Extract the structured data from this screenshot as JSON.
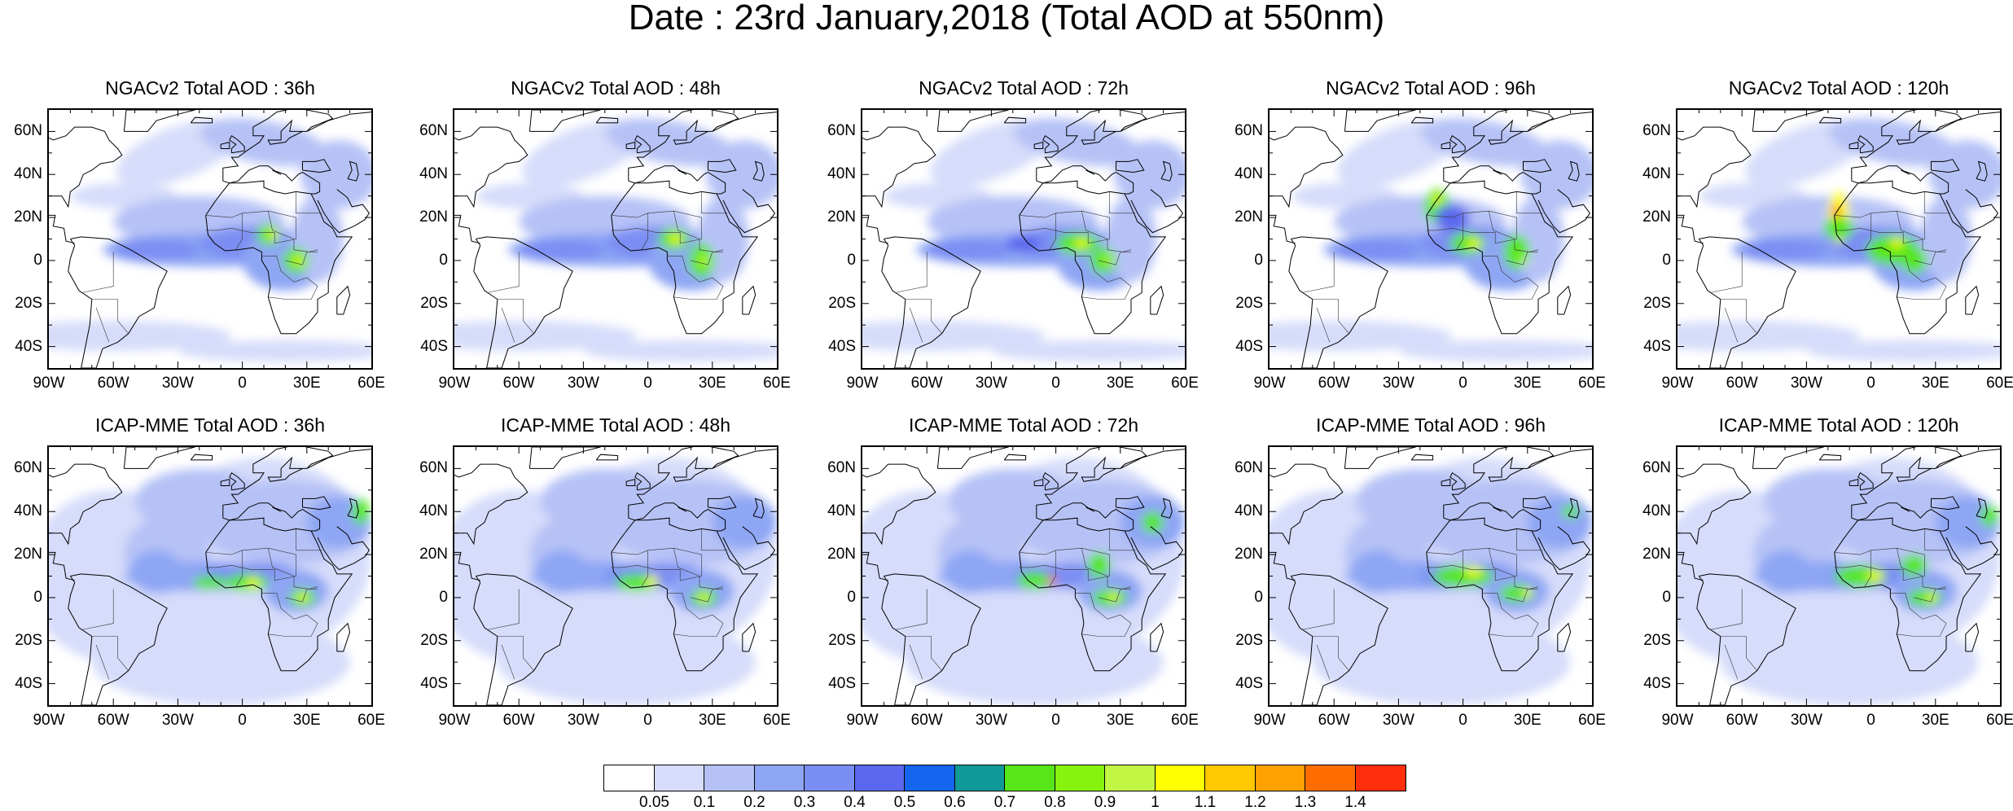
{
  "title": "Date : 23rd January,2018 (Total AOD at 550nm)",
  "rows": [
    {
      "panels": [
        {
          "title": "NGACv2 Total AOD : 36h"
        },
        {
          "title": "NGACv2 Total AOD : 48h"
        },
        {
          "title": "NGACv2 Total AOD : 72h"
        },
        {
          "title": "NGACv2 Total AOD : 96h"
        },
        {
          "title": "NGACv2 Total AOD : 120h"
        }
      ]
    },
    {
      "panels": [
        {
          "title": "ICAP-MME Total AOD : 36h"
        },
        {
          "title": "ICAP-MME Total AOD : 48h"
        },
        {
          "title": "ICAP-MME Total AOD : 72h"
        },
        {
          "title": "ICAP-MME Total AOD : 96h"
        },
        {
          "title": "ICAP-MME Total AOD : 120h"
        }
      ]
    }
  ],
  "lat_labels": [
    "60N",
    "40N",
    "20N",
    "0",
    "20S",
    "40S"
  ],
  "lon_labels": [
    "90W",
    "60W",
    "30W",
    "0",
    "30E",
    "60E"
  ],
  "colorbar": {
    "labels": [
      "0.05",
      "0.1",
      "0.2",
      "0.3",
      "0.4",
      "0.5",
      "0.6",
      "0.7",
      "0.8",
      "0.9",
      "1",
      "1.1",
      "1.2",
      "1.3",
      "1.4"
    ],
    "colors": [
      "#ffffff",
      "#d6dcfa",
      "#b6c2f6",
      "#8ea6f4",
      "#7b8ef3",
      "#5b67ee",
      "#1565ef",
      "#0f9a97",
      "#56e61a",
      "#86f20d",
      "#c1f645",
      "#ffff00",
      "#ffc800",
      "#ffa100",
      "#ff6d00",
      "#ff2e0d"
    ]
  }
}
